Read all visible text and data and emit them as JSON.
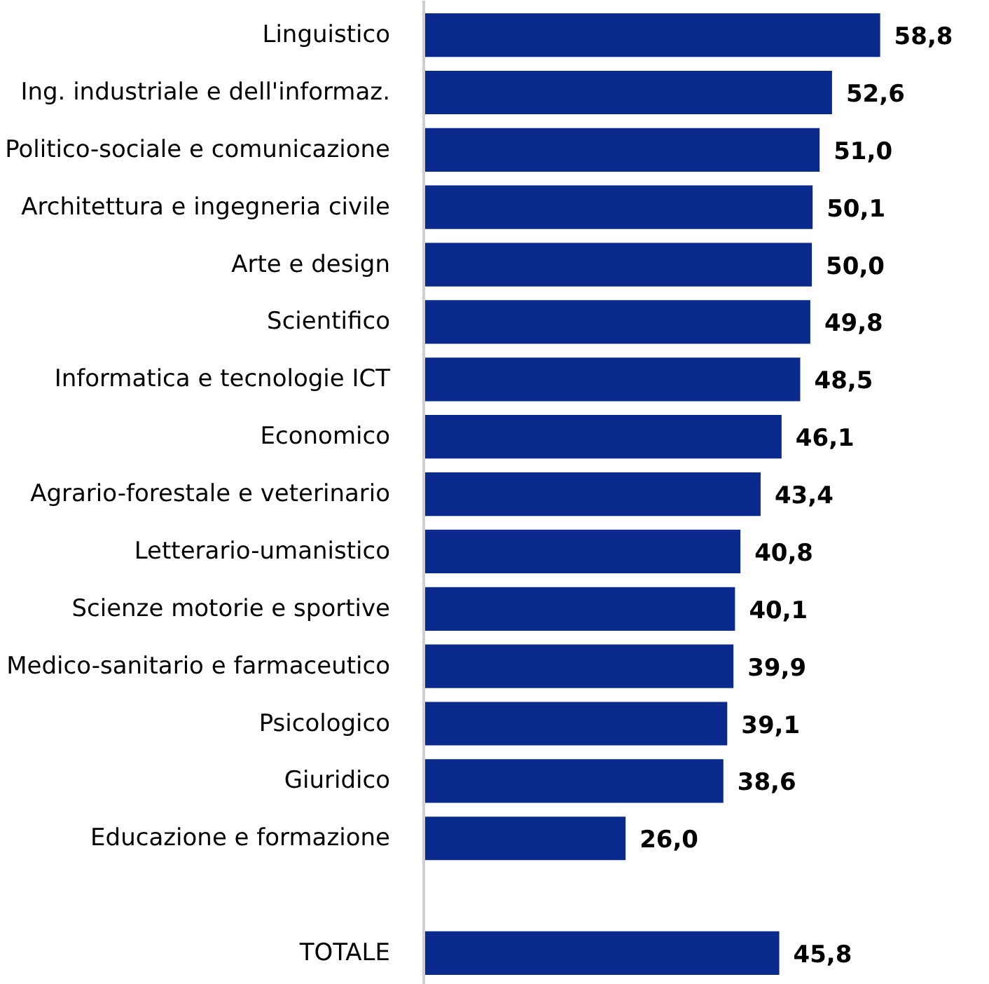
{
  "chart_data": {
    "type": "bar",
    "orientation": "horizontal",
    "categories": [
      "Linguistico",
      "Ing. industriale e dell'informaz.",
      "Politico-sociale e comunicazione",
      "Architettura e ingegneria civile",
      "Arte e design",
      "Scientifico",
      "Informatica e tecnologie ICT",
      "Economico",
      "Agrario-forestale e veterinario",
      "Letterario-umanistico",
      "Scienze motorie e sportive",
      "Medico-sanitario e farmaceutico",
      "Psicologico",
      "Giuridico",
      "Educazione e formazione",
      null,
      "TOTALE"
    ],
    "values": [
      58.8,
      52.6,
      51.0,
      50.1,
      50.0,
      49.8,
      48.5,
      46.1,
      43.4,
      40.8,
      40.1,
      39.9,
      39.1,
      38.6,
      26.0,
      null,
      45.8
    ],
    "value_labels": [
      "58,8",
      "52,6",
      "51,0",
      "50,1",
      "50,0",
      "49,8",
      "48,5",
      "46,1",
      "43,4",
      "40,8",
      "40,1",
      "39,9",
      "39,1",
      "38,6",
      "26,0",
      null,
      "45,8"
    ],
    "color": "#0b2a8e",
    "grid": false
  }
}
